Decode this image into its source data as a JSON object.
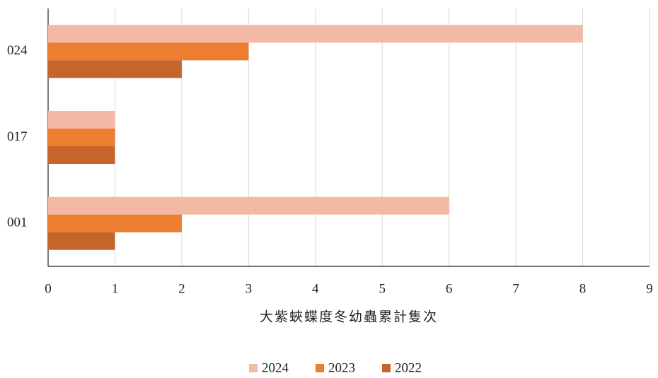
{
  "chart_data": {
    "type": "barh",
    "categories": [
      "001",
      "017",
      "024"
    ],
    "series": [
      {
        "name": "2024",
        "color": "#f4b9a4",
        "values": [
          6,
          1,
          8
        ]
      },
      {
        "name": "2023",
        "color": "#ed7d31",
        "values": [
          2,
          1,
          3
        ]
      },
      {
        "name": "2022",
        "color": "#c5652b",
        "values": [
          1,
          1,
          2
        ]
      }
    ],
    "xlabel": "大紫蛺蝶度冬幼蟲累計隻次",
    "xlim": [
      0,
      9
    ],
    "xticks": [
      0,
      1,
      2,
      3,
      4,
      5,
      6,
      7,
      8,
      9
    ],
    "grid": true,
    "legend": "bottom"
  }
}
